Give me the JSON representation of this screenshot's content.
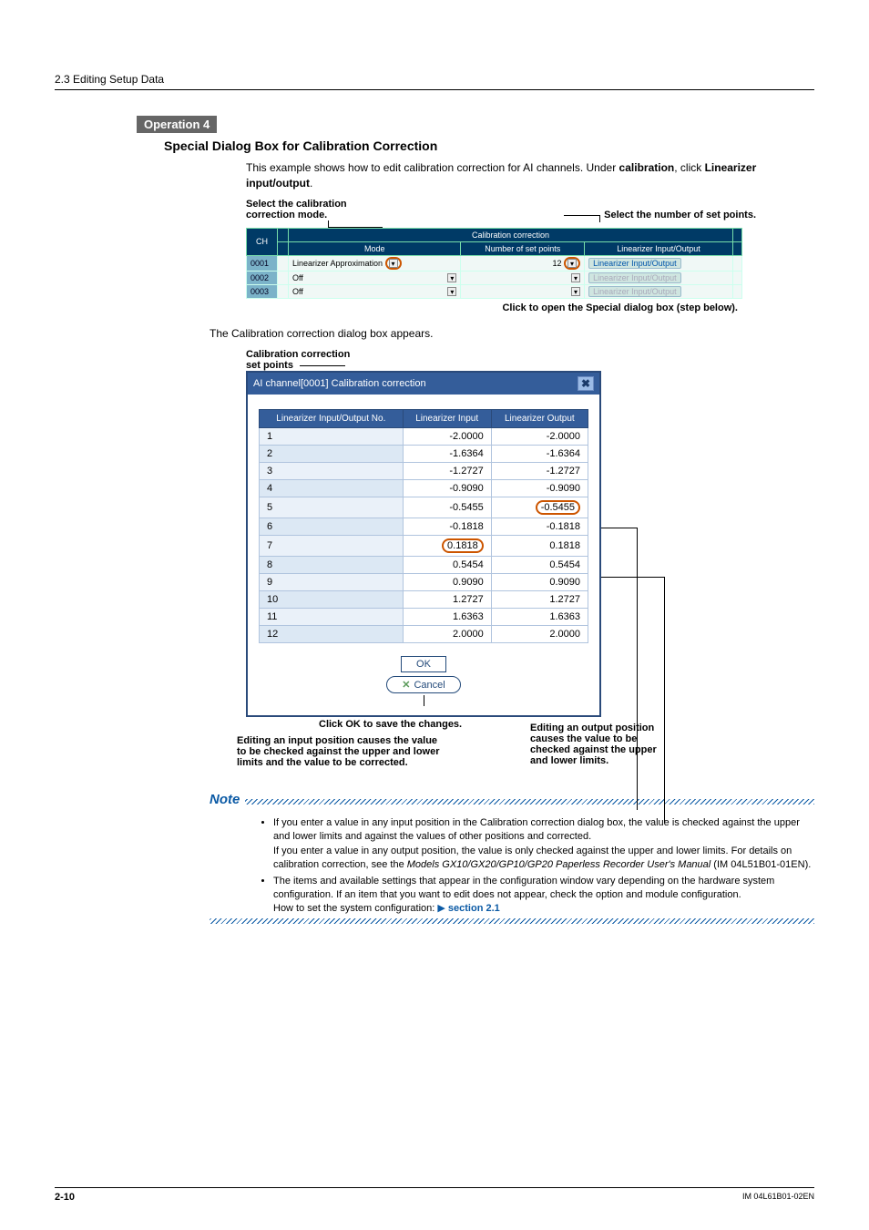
{
  "breadcrumb": "2.3  Editing Setup Data",
  "operation_badge": "Operation 4",
  "section_title": "Special Dialog Box for Calibration Correction",
  "intro_line1": "This example shows how to edit calibration correction for AI channels. Under ",
  "intro_bold1": "calibration",
  "intro_mid": ", click ",
  "intro_bold2": "Linearizer input/output",
  "intro_end": ".",
  "annot_select_mode_l1": "Select the calibration",
  "annot_select_mode_l2": "correction mode.",
  "annot_select_points": "Select the number of set points.",
  "fig1": {
    "group_header": "Calibration correction",
    "headers": [
      "CH",
      "Mode",
      "Number of set points",
      "Linearizer Input/Output"
    ],
    "rows": [
      {
        "ch": "0001",
        "mode": "Linearizer Approximation",
        "pts": "12",
        "btn": "Linearizer Input/Output",
        "enabled": true,
        "ring_mode": true,
        "ring_pts": true,
        "ring_btn": true
      },
      {
        "ch": "0002",
        "mode": "Off",
        "pts": "",
        "btn": "Linearizer Input/Output",
        "enabled": false
      },
      {
        "ch": "0003",
        "mode": "Off",
        "pts": "",
        "btn": "Linearizer Input/Output",
        "enabled": false
      }
    ]
  },
  "caption_click_open": "Click to open the Special dialog box (step below).",
  "para_dialog_appears": "The Calibration correction dialog box appears.",
  "annot_setpoints_l1": "Calibration correction",
  "annot_setpoints_l2": "set points",
  "dialog": {
    "title": "AI channel[0001] Calibration correction",
    "columns": [
      "Linearizer Input/Output No.",
      "Linearizer Input",
      "Linearizer Output"
    ],
    "rows": [
      {
        "n": "1",
        "in": "-2.0000",
        "out": "-2.0000"
      },
      {
        "n": "2",
        "in": "-1.6364",
        "out": "-1.6364"
      },
      {
        "n": "3",
        "in": "-1.2727",
        "out": "-1.2727"
      },
      {
        "n": "4",
        "in": "-0.9090",
        "out": "-0.9090"
      },
      {
        "n": "5",
        "in": "-0.5455",
        "out": "-0.5455",
        "ring_out": true
      },
      {
        "n": "6",
        "in": "-0.1818",
        "out": "-0.1818"
      },
      {
        "n": "7",
        "in": "0.1818",
        "out": "0.1818",
        "ring_in": true
      },
      {
        "n": "8",
        "in": "0.5454",
        "out": "0.5454"
      },
      {
        "n": "9",
        "in": "0.9090",
        "out": "0.9090"
      },
      {
        "n": "10",
        "in": "1.2727",
        "out": "1.2727"
      },
      {
        "n": "11",
        "in": "1.6363",
        "out": "1.6363"
      },
      {
        "n": "12",
        "in": "2.0000",
        "out": "2.0000"
      }
    ],
    "ok": "OK",
    "cancel": "Cancel"
  },
  "annot_click_ok": "Click OK to save the changes.",
  "annot_input_l1": "Editing an input position causes the value",
  "annot_input_l2": "to be checked against the upper and lower",
  "annot_input_l3": "limits and the value to be corrected.",
  "annot_output_l1": "Editing an output position",
  "annot_output_l2": "causes the value to be",
  "annot_output_l3": "checked against the upper",
  "annot_output_l4": "and lower limits.",
  "note_title": "Note",
  "note_items": [
    "If you enter a value in any input position in the Calibration correction dialog box, the value is checked against the upper and lower limits and against the values of other positions and corrected.",
    "If you enter a value in any output position, the value is only checked against the upper and lower limits. For details on calibration correction, see the Models GX10/GX20/GP10/GP20 Paperless Recorder User's Manual (IM 04L51B01-01EN).",
    "The items and available settings that appear in the configuration window vary depending on the hardware system configuration. If an item that you want to edit does not appear, check the option and module configuration.",
    "How to set the system configuration:"
  ],
  "note_models_italic": "Models GX10/GX20/GP10/GP20 Paperless Recorder User's Manual",
  "note_link": "section 2.1",
  "footer_page": "2-10",
  "footer_doc": "IM 04L61B01-02EN"
}
